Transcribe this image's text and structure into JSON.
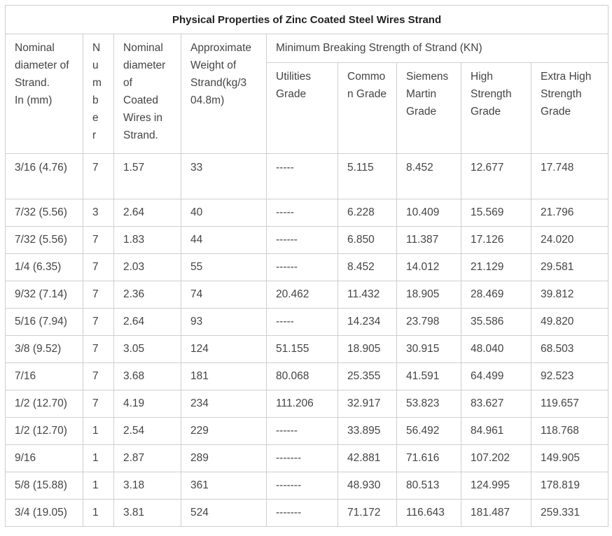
{
  "title": "Physical Properties of Zinc Coated Steel Wires Strand",
  "headers": {
    "nominal_diameter": "Nominal diameter of Strand. In (mm)",
    "nominal_diameter_lines": [
      "Nominal",
      "diameter of",
      "Strand.",
      "In (mm)"
    ],
    "number_letters": [
      "N",
      "u",
      "m",
      "b",
      "e",
      "r"
    ],
    "coated_lines": [
      "Nominal",
      "diameter",
      "of",
      "Coated",
      "Wires in",
      "Strand."
    ],
    "weight_lines": [
      "Approximate",
      "Weight of",
      "Strand(kg/3",
      "04.8m)"
    ],
    "min_breaking": "Minimum Breaking Strength of Strand (KN)",
    "utilities_lines": [
      "Utilities",
      "Grade"
    ],
    "common_lines": [
      "Commo",
      "n Grade"
    ],
    "siemens_lines": [
      "Siemens",
      "Martin",
      "Grade"
    ],
    "high_lines": [
      "High",
      "Strength",
      "Grade"
    ],
    "extra_lines": [
      "Extra High",
      "Strength",
      "Grade"
    ]
  },
  "rows": [
    [
      "3/16 (4.76)",
      "7",
      "1.57",
      "33",
      "-----",
      "5.115",
      "8.452",
      "12.677",
      "17.748"
    ],
    [
      "7/32 (5.56)",
      "3",
      "2.64",
      "40",
      "-----",
      "6.228",
      "10.409",
      "15.569",
      "21.796"
    ],
    [
      "7/32 (5.56)",
      "7",
      "1.83",
      "44",
      "------",
      "6.850",
      "11.387",
      "17.126",
      "24.020"
    ],
    [
      "1/4 (6.35)",
      "7",
      "2.03",
      "55",
      "------",
      "8.452",
      "14.012",
      "21.129",
      "29.581"
    ],
    [
      "9/32 (7.14)",
      "7",
      "2.36",
      "74",
      "20.462",
      "11.432",
      "18.905",
      "28.469",
      "39.812"
    ],
    [
      "5/16 (7.94)",
      "7",
      "2.64",
      "93",
      "-----",
      "14.234",
      "23.798",
      "35.586",
      "49.820"
    ],
    [
      "3/8 (9.52)",
      "7",
      "3.05",
      "124",
      "51.155",
      "18.905",
      "30.915",
      "48.040",
      "68.503"
    ],
    [
      "7/16",
      "7",
      "3.68",
      "181",
      "80.068",
      "25.355",
      "41.591",
      "64.499",
      "92.523"
    ],
    [
      "1/2 (12.70)",
      "7",
      "4.19",
      "234",
      "111.206",
      "32.917",
      "53.823",
      "83.627",
      "119.657"
    ],
    [
      "1/2 (12.70)",
      "1",
      "2.54",
      "229",
      "------",
      "33.895",
      "56.492",
      "84.961",
      "118.768"
    ],
    [
      "9/16",
      "1",
      "2.87",
      "289",
      "-------",
      "42.881",
      "71.616",
      "107.202",
      "149.905"
    ],
    [
      "5/8 (15.88)",
      "1",
      "3.18",
      "361",
      "-------",
      "48.930",
      "80.513",
      "124.995",
      "178.819"
    ],
    [
      "3/4 (19.05)",
      "1",
      "3.81",
      "524",
      "-------",
      "71.172",
      "116.643",
      "181.487",
      "259.331"
    ]
  ]
}
